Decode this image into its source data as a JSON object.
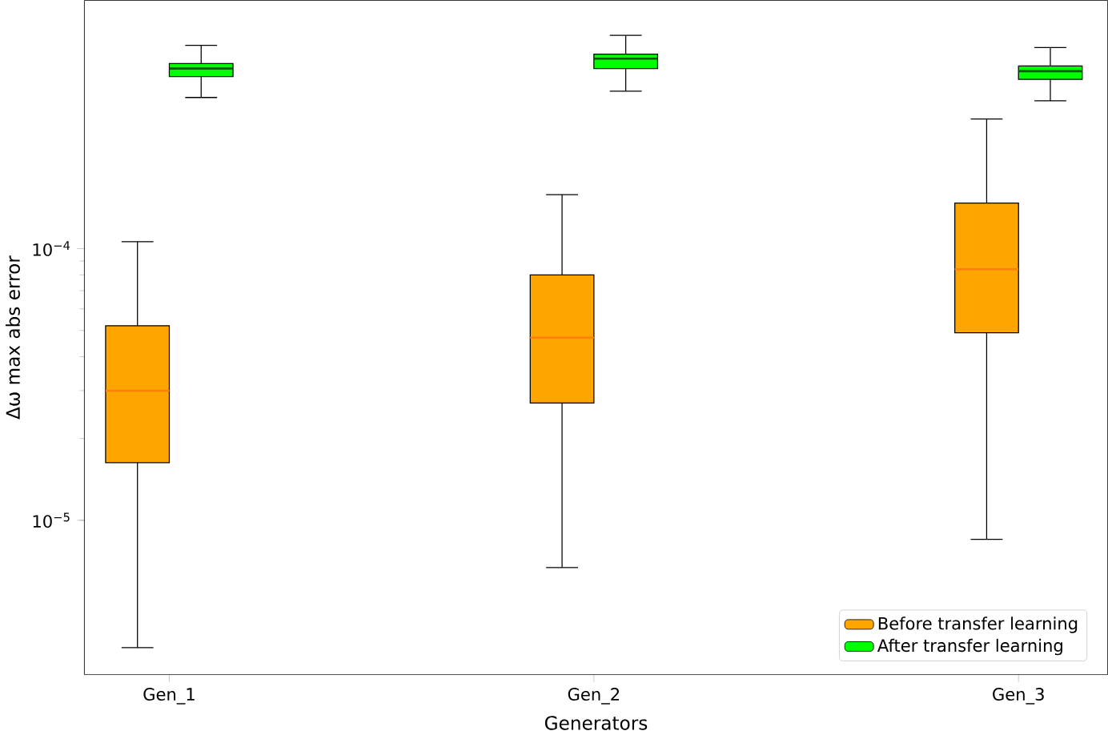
{
  "chart_data": {
    "type": "box",
    "xlabel": "Generators",
    "ylabel": "Δω max abs error",
    "categories": [
      "Gen_1",
      "Gen_2",
      "Gen_3"
    ],
    "log": "y",
    "ylim": [
      2.7e-06,
      0.00082
    ],
    "yticks": [
      {
        "value": 1e-05,
        "label": "10$^{−5}$"
      },
      {
        "value": 0.0001,
        "label": "10$^{−4}$"
      }
    ],
    "legend": "bottom right",
    "grid": false,
    "series": [
      {
        "name": "Before transfer learning",
        "color": "#ffa500",
        "boxes": [
          {
            "low": 3.4e-06,
            "q1": 1.63e-05,
            "median": 3e-05,
            "q3": 5.2e-05,
            "high": 0.000106
          },
          {
            "low": 6.7e-06,
            "q1": 2.7e-05,
            "median": 4.7e-05,
            "q3": 8e-05,
            "high": 0.000158
          },
          {
            "low": 8.5e-06,
            "q1": 4.9e-05,
            "median": 8.4e-05,
            "q3": 0.000147,
            "high": 0.0003
          }
        ]
      },
      {
        "name": "After transfer learning",
        "color": "#00ff00",
        "boxes": [
          {
            "low": 0.00036,
            "q1": 0.00043,
            "median": 0.00046,
            "q3": 0.00048,
            "high": 0.00056
          },
          {
            "low": 0.00038,
            "q1": 0.00046,
            "median": 0.0005,
            "q3": 0.00052,
            "high": 0.00061
          },
          {
            "low": 0.00035,
            "q1": 0.00042,
            "median": 0.00045,
            "q3": 0.00047,
            "high": 0.00055
          }
        ]
      }
    ]
  }
}
